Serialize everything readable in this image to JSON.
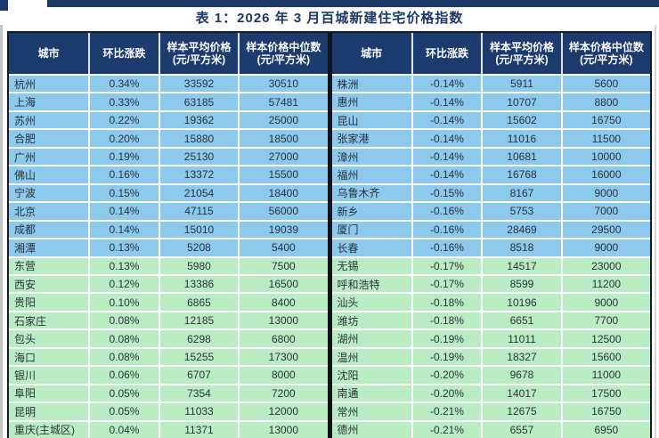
{
  "title": "表 1：2026 年 3 月百城新建住宅价格指数",
  "columns": [
    {
      "line1": "城市",
      "line2": ""
    },
    {
      "line1": "环比涨跌",
      "line2": ""
    },
    {
      "line1": "样本平均价格",
      "line2": "(元/平方米)"
    },
    {
      "line1": "样本价格中位数",
      "line2": "(元/平方米)"
    }
  ],
  "highlight": {
    "blue_row_count": 10,
    "blue_color": "#8cc9ed",
    "green_color": "#baecc4",
    "header_color": "#1c3b6f"
  },
  "tables": [
    {
      "name": "rising-cities",
      "rows": [
        [
          "杭州",
          "0.34%",
          "33592",
          "30510"
        ],
        [
          "上海",
          "0.33%",
          "63185",
          "57481"
        ],
        [
          "苏州",
          "0.22%",
          "19362",
          "25000"
        ],
        [
          "合肥",
          "0.20%",
          "15880",
          "18500"
        ],
        [
          "广州",
          "0.19%",
          "25130",
          "27000"
        ],
        [
          "佛山",
          "0.16%",
          "13372",
          "15500"
        ],
        [
          "宁波",
          "0.15%",
          "21054",
          "18400"
        ],
        [
          "北京",
          "0.14%",
          "47115",
          "56000"
        ],
        [
          "成都",
          "0.14%",
          "15010",
          "19039"
        ],
        [
          "湘潭",
          "0.13%",
          "5208",
          "5400"
        ],
        [
          "东营",
          "0.13%",
          "5980",
          "7500"
        ],
        [
          "西安",
          "0.12%",
          "13386",
          "16500"
        ],
        [
          "贵阳",
          "0.10%",
          "6865",
          "8400"
        ],
        [
          "石家庄",
          "0.08%",
          "12185",
          "13000"
        ],
        [
          "包头",
          "0.08%",
          "6298",
          "6800"
        ],
        [
          "海口",
          "0.08%",
          "15255",
          "17300"
        ],
        [
          "银川",
          "0.06%",
          "6707",
          "8000"
        ],
        [
          "阜阳",
          "0.05%",
          "7354",
          "7200"
        ],
        [
          "昆明",
          "0.05%",
          "11033",
          "12000"
        ],
        [
          "重庆(主城区)",
          "0.04%",
          "11371",
          "13000"
        ]
      ]
    },
    {
      "name": "falling-cities",
      "rows": [
        [
          "株洲",
          "-0.14%",
          "5911",
          "5600"
        ],
        [
          "惠州",
          "-0.14%",
          "10707",
          "8800"
        ],
        [
          "昆山",
          "-0.14%",
          "15602",
          "16750"
        ],
        [
          "张家港",
          "-0.14%",
          "11016",
          "11500"
        ],
        [
          "漳州",
          "-0.14%",
          "10681",
          "10000"
        ],
        [
          "福州",
          "-0.14%",
          "16768",
          "16000"
        ],
        [
          "乌鲁木齐",
          "-0.15%",
          "8167",
          "9000"
        ],
        [
          "新乡",
          "-0.16%",
          "5753",
          "7000"
        ],
        [
          "厦门",
          "-0.16%",
          "28469",
          "29500"
        ],
        [
          "长春",
          "-0.16%",
          "8518",
          "9000"
        ],
        [
          "无锡",
          "-0.17%",
          "14517",
          "23000"
        ],
        [
          "呼和浩特",
          "-0.17%",
          "8599",
          "11200"
        ],
        [
          "汕头",
          "-0.18%",
          "10196",
          "9000"
        ],
        [
          "潍坊",
          "-0.18%",
          "6651",
          "7700"
        ],
        [
          "湖州",
          "-0.19%",
          "11011",
          "12500"
        ],
        [
          "温州",
          "-0.19%",
          "18327",
          "15600"
        ],
        [
          "沈阳",
          "-0.20%",
          "9678",
          "11000"
        ],
        [
          "南通",
          "-0.20%",
          "14017",
          "17500"
        ],
        [
          "常州",
          "-0.21%",
          "12675",
          "16750"
        ],
        [
          "德州",
          "-0.21%",
          "6557",
          "6950"
        ]
      ]
    }
  ]
}
